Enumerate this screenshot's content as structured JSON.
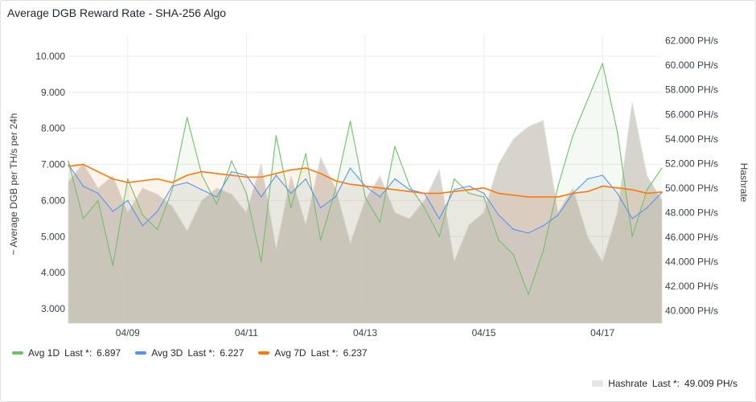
{
  "panel": {
    "title": "Average DGB Reward Rate - SHA-256 Algo"
  },
  "chart_data": {
    "type": "line",
    "title": "Average DGB Reward Rate - SHA-256 Algo",
    "ylabel": "~ Average DGB per TH/s per 24h",
    "y2label": "Hashrate",
    "ylim": [
      2600,
      10600
    ],
    "y2lim": [
      39000,
      62500
    ],
    "xlim": [
      0,
      10
    ],
    "x_ticks": [
      {
        "x": 1,
        "label": "04/09"
      },
      {
        "x": 3,
        "label": "04/11"
      },
      {
        "x": 5,
        "label": "04/13"
      },
      {
        "x": 7,
        "label": "04/15"
      },
      {
        "x": 9,
        "label": "04/17"
      }
    ],
    "y_ticks": [
      3000,
      4000,
      5000,
      6000,
      7000,
      8000,
      9000,
      10000
    ],
    "y_tick_labels": [
      "3.000",
      "4.000",
      "5.000",
      "6.000",
      "7.000",
      "8.000",
      "9.000",
      "10.000"
    ],
    "y2_ticks": [
      40000,
      42000,
      44000,
      46000,
      48000,
      50000,
      52000,
      54000,
      56000,
      58000,
      60000,
      62000
    ],
    "y2_tick_labels": [
      "40.000 PH/s",
      "42.000 PH/s",
      "44.000 PH/s",
      "46.000 PH/s",
      "48.000 PH/s",
      "50.000 PH/s",
      "52.000 PH/s",
      "54.000 PH/s",
      "56.000 PH/s",
      "58.000 PH/s",
      "60.000 PH/s",
      "62.000 PH/s"
    ],
    "grid": true,
    "x": [
      0,
      0.25,
      0.5,
      0.75,
      1,
      1.25,
      1.5,
      1.75,
      2,
      2.25,
      2.5,
      2.75,
      3,
      3.25,
      3.5,
      3.75,
      4,
      4.25,
      4.5,
      4.75,
      5,
      5.25,
      5.5,
      5.75,
      6,
      6.25,
      6.5,
      6.75,
      7,
      7.25,
      7.5,
      7.75,
      8,
      8.25,
      8.5,
      8.75,
      9,
      9.25,
      9.5,
      9.75,
      10
    ],
    "series": [
      {
        "name": "Avg 1D",
        "axis": "left",
        "color": "#73bf69",
        "last_label": "Last *:",
        "last_value": "6.897",
        "values": [
          7100,
          5500,
          6000,
          4200,
          6600,
          5600,
          5200,
          6300,
          8300,
          6700,
          5900,
          7100,
          6200,
          4300,
          7800,
          5800,
          7300,
          4900,
          6300,
          8200,
          6100,
          5400,
          7500,
          6400,
          5800,
          5000,
          6600,
          6200,
          6100,
          4900,
          4500,
          3400,
          4600,
          6400,
          7800,
          8800,
          9800,
          7900,
          5000,
          6300,
          6900
        ]
      },
      {
        "name": "Avg 3D",
        "axis": "left",
        "color": "#5794f2",
        "last_label": "Last *:",
        "last_value": "6.227",
        "values": [
          7000,
          6400,
          6200,
          5700,
          6000,
          5300,
          5700,
          6400,
          6500,
          6300,
          6100,
          6800,
          6700,
          6100,
          6700,
          6200,
          6600,
          5800,
          6100,
          6900,
          6400,
          6100,
          6600,
          6300,
          6200,
          5500,
          6300,
          6400,
          6200,
          5600,
          5200,
          5100,
          5300,
          5600,
          6200,
          6600,
          6700,
          6200,
          5500,
          5800,
          6227
        ]
      },
      {
        "name": "Avg 7D",
        "axis": "left",
        "color": "#ff780a",
        "last_label": "Last *:",
        "last_value": "6.237",
        "values": [
          6950,
          7000,
          6800,
          6600,
          6500,
          6550,
          6600,
          6500,
          6700,
          6800,
          6750,
          6700,
          6650,
          6650,
          6750,
          6850,
          6900,
          6750,
          6550,
          6450,
          6400,
          6350,
          6300,
          6250,
          6200,
          6200,
          6250,
          6300,
          6350,
          6200,
          6150,
          6100,
          6100,
          6100,
          6200,
          6250,
          6400,
          6350,
          6300,
          6200,
          6237
        ]
      },
      {
        "name": "Hashrate",
        "axis": "right",
        "color": "#e6e6e6",
        "last_label": "Last *:",
        "last_value": "49.009 PH/s",
        "values": [
          50500,
          52000,
          50000,
          51000,
          48000,
          50000,
          49500,
          48500,
          46500,
          49000,
          50000,
          49500,
          48000,
          52000,
          45000,
          51000,
          47000,
          52500,
          50000,
          45500,
          49000,
          51000,
          48000,
          47500,
          49000,
          51500,
          44000,
          47000,
          48000,
          52000,
          54000,
          55000,
          55500,
          48000,
          50000,
          46000,
          44000,
          48000,
          57000,
          51000,
          49009
        ]
      }
    ]
  }
}
